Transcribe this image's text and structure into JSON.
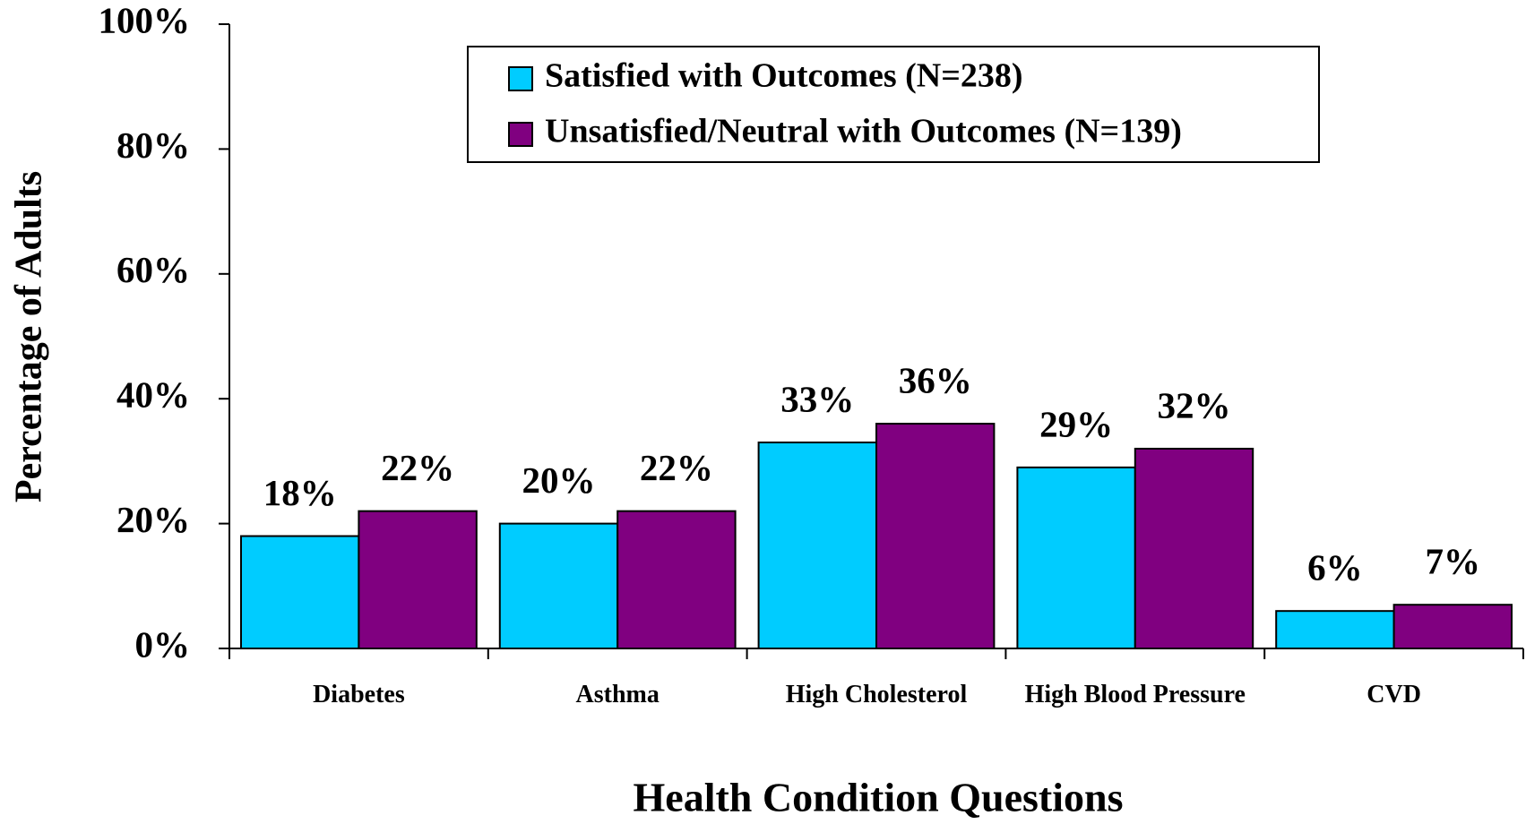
{
  "chart_data": {
    "type": "bar",
    "x_label": "Health Condition Questions",
    "y_label": "Percentage of Adults",
    "categories": [
      "Diabetes",
      "Asthma",
      "High Cholesterol",
      "High Blood Pressure",
      "CVD"
    ],
    "series": [
      {
        "name": "Satisfied with Outcomes (N=238)",
        "color": "#00ccff",
        "values": [
          18,
          20,
          33,
          29,
          6
        ],
        "value_labels": [
          "18%",
          "20%",
          "33%",
          "29%",
          "6%"
        ]
      },
      {
        "name": "Unsatisfied/Neutral with Outcomes (N=139)",
        "color": "#800080",
        "values": [
          22,
          22,
          36,
          32,
          7
        ],
        "value_labels": [
          "22%",
          "22%",
          "36%",
          "32%",
          "7%"
        ]
      }
    ],
    "ylim": [
      0,
      100
    ],
    "yticks": [
      {
        "value": 0,
        "label": "0%"
      },
      {
        "value": 20,
        "label": "20%"
      },
      {
        "value": 40,
        "label": "40%"
      },
      {
        "value": 60,
        "label": "60%"
      },
      {
        "value": 80,
        "label": "80%"
      },
      {
        "value": 100,
        "label": "100%"
      }
    ],
    "grid": false,
    "legend_position": "top"
  }
}
